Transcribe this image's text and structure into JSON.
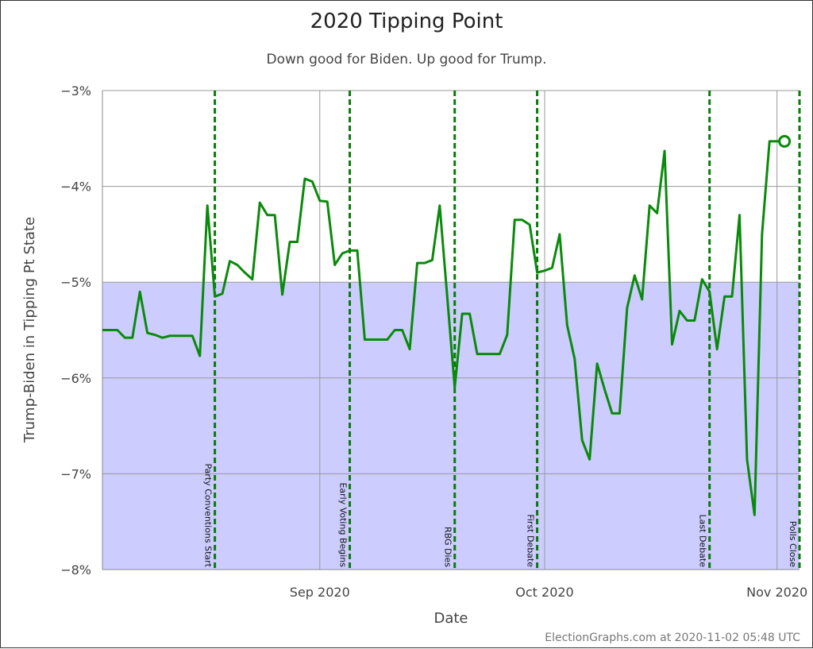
{
  "chart_data": {
    "type": "line",
    "title": "2020 Tipping Point",
    "subtitle": "Down good for Biden. Up good for Trump.",
    "x_label": "Date",
    "y_label": "Trump-Biden in Tipping Pt State",
    "footer": "ElectionGraphs.com at 2020-11-02 05:48 UTC",
    "categories": [
      null,
      null,
      null,
      null,
      null,
      null,
      null,
      null,
      null,
      null,
      null,
      null,
      null,
      null,
      null,
      null,
      null,
      null,
      null,
      null,
      null,
      null,
      null,
      null,
      null,
      null,
      null,
      null,
      null,
      "Sep 2020",
      null,
      null,
      null,
      null,
      null,
      null,
      null,
      null,
      null,
      null,
      null,
      null,
      null,
      null,
      null,
      null,
      null,
      null,
      null,
      null,
      null,
      null,
      null,
      null,
      null,
      null,
      null,
      null,
      null,
      "Oct 2020",
      null,
      null,
      null,
      null,
      null,
      null,
      null,
      null,
      null,
      null,
      null,
      null,
      null,
      null,
      null,
      null,
      null,
      null,
      null,
      null,
      null,
      null,
      null,
      null,
      null,
      null,
      null,
      null,
      null,
      null,
      "Nov 2020",
      null,
      null,
      null
    ],
    "series": [
      {
        "color": "#0a8a0a",
        "values": [
          -5.5,
          -5.5,
          -5.5,
          -5.58,
          -5.58,
          -5.1,
          -5.53,
          -5.55,
          -5.58,
          -5.56,
          -5.56,
          -5.56,
          -5.56,
          -5.77,
          -4.2,
          -5.15,
          -5.12,
          -4.78,
          -4.82,
          -4.9,
          -4.97,
          -4.17,
          -4.3,
          -4.3,
          -5.13,
          -4.58,
          -4.58,
          -3.92,
          -3.95,
          -4.15,
          -4.16,
          -4.82,
          -4.7,
          -4.67,
          -4.67,
          -5.6,
          -5.6,
          -5.6,
          -5.6,
          -5.5,
          -5.5,
          -5.7,
          -4.8,
          -4.8,
          -4.77,
          -4.2,
          -5.15,
          -6.1,
          -5.33,
          -5.33,
          -5.75,
          -5.75,
          -5.75,
          -5.75,
          -5.55,
          -4.35,
          -4.35,
          -4.4,
          -4.9,
          -4.88,
          -4.85,
          -4.5,
          -5.45,
          -5.8,
          -6.65,
          -6.85,
          -5.85,
          -6.12,
          -6.37,
          -6.37,
          -5.27,
          -4.93,
          -5.18,
          -4.2,
          -4.28,
          -3.63,
          -5.65,
          -5.3,
          -5.4,
          -5.4,
          -4.97,
          -5.1,
          -5.7,
          -5.15,
          -5.15,
          -4.3,
          -6.85,
          -7.43,
          -4.5,
          -3.53,
          -3.53,
          -3.53,
          null,
          null
        ]
      }
    ],
    "ylim": [
      -8,
      -3
    ],
    "yticks": [
      {
        "value": -8,
        "label": "−8%"
      },
      {
        "value": -7,
        "label": "−7%"
      },
      {
        "value": -6,
        "label": "−6%"
      },
      {
        "value": -5,
        "label": "−5%"
      },
      {
        "value": -4,
        "label": "−4%"
      },
      {
        "value": -3,
        "label": "−3%"
      }
    ],
    "shaded_range": [
      -8,
      -5
    ],
    "shade_color": "#ccccff",
    "events": [
      {
        "label": "Party Conventions Start",
        "index": 15
      },
      {
        "label": "Early Voting Begins",
        "index": 33
      },
      {
        "label": "RBG Dies",
        "index": 47
      },
      {
        "label": "First Debate",
        "index": 58
      },
      {
        "label": "Last Debate",
        "index": 81
      },
      {
        "label": "Polls Close",
        "index": 93
      }
    ],
    "event_color": "#0a7a0a",
    "grid": true
  }
}
